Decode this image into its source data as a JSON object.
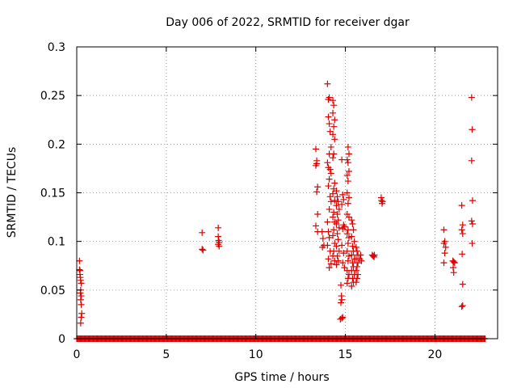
{
  "chart_data": {
    "type": "scatter",
    "title": "Day 006 of 2022, SRMTID for receiver dgar",
    "xlabel": "GPS time / hours",
    "ylabel": "SRMTID / TECUs",
    "xlim": [
      0,
      23.5
    ],
    "ylim": [
      0,
      0.3
    ],
    "grid": true,
    "marker": "+",
    "marker_color": "#dd0000",
    "x_ticks": [
      {
        "value": 0,
        "label": "0"
      },
      {
        "value": 5,
        "label": "5"
      },
      {
        "value": 10,
        "label": "10"
      },
      {
        "value": 15,
        "label": "15"
      },
      {
        "value": 20,
        "label": "20"
      }
    ],
    "y_ticks": [
      {
        "value": 0,
        "label": "0"
      },
      {
        "value": 0.05,
        "label": "0.05"
      },
      {
        "value": 0.1,
        "label": "0.1"
      },
      {
        "value": 0.15,
        "label": "0.15"
      },
      {
        "value": 0.2,
        "label": "0.2"
      },
      {
        "value": 0.25,
        "label": "0.25"
      },
      {
        "value": 0.3,
        "label": "0.3"
      }
    ],
    "series": [
      {
        "name": "SRMTID",
        "zero_baseline": {
          "x_start": 0,
          "x_end": 22.8,
          "step": 0.05,
          "y": 0
        },
        "points": [
          [
            0.15,
            0.08
          ],
          [
            0.15,
            0.071
          ],
          [
            0.18,
            0.07
          ],
          [
            0.18,
            0.066
          ],
          [
            0.2,
            0.063
          ],
          [
            0.22,
            0.06
          ],
          [
            0.25,
            0.057
          ],
          [
            0.22,
            0.05
          ],
          [
            0.2,
            0.047
          ],
          [
            0.25,
            0.044
          ],
          [
            0.22,
            0.04
          ],
          [
            0.25,
            0.035
          ],
          [
            0.28,
            0.026
          ],
          [
            0.25,
            0.022
          ],
          [
            0.22,
            0.016
          ],
          [
            7.0,
            0.109
          ],
          [
            7.0,
            0.092
          ],
          [
            7.05,
            0.091
          ],
          [
            7.9,
            0.114
          ],
          [
            7.9,
            0.105
          ],
          [
            7.92,
            0.101
          ],
          [
            7.95,
            0.099
          ],
          [
            7.9,
            0.097
          ],
          [
            7.95,
            0.095
          ],
          [
            13.35,
            0.195
          ],
          [
            13.4,
            0.183
          ],
          [
            13.4,
            0.18
          ],
          [
            13.35,
            0.178
          ],
          [
            13.45,
            0.156
          ],
          [
            13.4,
            0.151
          ],
          [
            13.45,
            0.128
          ],
          [
            13.35,
            0.116
          ],
          [
            13.45,
            0.11
          ],
          [
            13.7,
            0.11
          ],
          [
            13.75,
            0.103
          ],
          [
            13.8,
            0.096
          ],
          [
            13.72,
            0.094
          ],
          [
            14.0,
            0.262
          ],
          [
            14.05,
            0.246
          ],
          [
            14.1,
            0.248
          ],
          [
            14.05,
            0.228
          ],
          [
            14.1,
            0.221
          ],
          [
            14.15,
            0.213
          ],
          [
            14.2,
            0.197
          ],
          [
            14.1,
            0.19
          ],
          [
            14.0,
            0.181
          ],
          [
            14.05,
            0.176
          ],
          [
            14.15,
            0.174
          ],
          [
            14.2,
            0.17
          ],
          [
            14.1,
            0.164
          ],
          [
            14.05,
            0.157
          ],
          [
            14.15,
            0.146
          ],
          [
            14.2,
            0.141
          ],
          [
            14.1,
            0.133
          ],
          [
            14.0,
            0.12
          ],
          [
            14.05,
            0.11
          ],
          [
            14.1,
            0.104
          ],
          [
            14.0,
            0.096
          ],
          [
            14.15,
            0.09
          ],
          [
            14.05,
            0.082
          ],
          [
            14.2,
            0.077
          ],
          [
            14.1,
            0.073
          ],
          [
            14.3,
            0.245
          ],
          [
            14.35,
            0.24
          ],
          [
            14.3,
            0.232
          ],
          [
            14.4,
            0.225
          ],
          [
            14.35,
            0.218
          ],
          [
            14.3,
            0.21
          ],
          [
            14.4,
            0.205
          ],
          [
            14.35,
            0.19
          ],
          [
            14.3,
            0.186
          ],
          [
            14.4,
            0.16
          ],
          [
            14.35,
            0.154
          ],
          [
            14.3,
            0.149
          ],
          [
            14.4,
            0.142
          ],
          [
            14.35,
            0.13
          ],
          [
            14.3,
            0.125
          ],
          [
            14.4,
            0.12
          ],
          [
            14.35,
            0.112
          ],
          [
            14.3,
            0.106
          ],
          [
            14.4,
            0.098
          ],
          [
            14.35,
            0.09
          ],
          [
            14.3,
            0.085
          ],
          [
            14.4,
            0.08
          ],
          [
            14.5,
            0.152
          ],
          [
            14.55,
            0.146
          ],
          [
            14.6,
            0.141
          ],
          [
            14.5,
            0.137
          ],
          [
            14.65,
            0.133
          ],
          [
            14.55,
            0.128
          ],
          [
            14.6,
            0.122
          ],
          [
            14.5,
            0.118
          ],
          [
            14.65,
            0.114
          ],
          [
            14.55,
            0.108
          ],
          [
            14.6,
            0.102
          ],
          [
            14.5,
            0.095
          ],
          [
            14.65,
            0.09
          ],
          [
            14.55,
            0.085
          ],
          [
            14.6,
            0.08
          ],
          [
            14.5,
            0.076
          ],
          [
            14.75,
            0.055
          ],
          [
            14.78,
            0.044
          ],
          [
            14.8,
            0.04
          ],
          [
            14.75,
            0.037
          ],
          [
            14.8,
            0.021
          ],
          [
            14.85,
            0.022
          ],
          [
            14.72,
            0.02
          ],
          [
            14.8,
            0.184
          ],
          [
            14.85,
            0.148
          ],
          [
            14.9,
            0.143
          ],
          [
            14.8,
            0.138
          ],
          [
            14.9,
            0.117
          ],
          [
            14.85,
            0.113
          ],
          [
            14.95,
            0.115
          ],
          [
            14.8,
            0.096
          ],
          [
            14.9,
            0.088
          ],
          [
            14.85,
            0.078
          ],
          [
            14.95,
            0.073
          ],
          [
            15.1,
            0.184
          ],
          [
            15.15,
            0.197
          ],
          [
            15.2,
            0.19
          ],
          [
            15.15,
            0.181
          ],
          [
            15.2,
            0.172
          ],
          [
            15.1,
            0.168
          ],
          [
            15.15,
            0.162
          ],
          [
            15.1,
            0.15
          ],
          [
            15.2,
            0.145
          ],
          [
            15.15,
            0.139
          ],
          [
            15.1,
            0.128
          ],
          [
            15.2,
            0.125
          ],
          [
            15.15,
            0.112
          ],
          [
            15.1,
            0.108
          ],
          [
            15.2,
            0.104
          ],
          [
            15.15,
            0.098
          ],
          [
            15.1,
            0.09
          ],
          [
            15.2,
            0.085
          ],
          [
            15.15,
            0.08
          ],
          [
            15.1,
            0.07
          ],
          [
            15.2,
            0.066
          ],
          [
            15.15,
            0.062
          ],
          [
            15.1,
            0.057
          ],
          [
            15.35,
            0.122
          ],
          [
            15.4,
            0.118
          ],
          [
            15.45,
            0.112
          ],
          [
            15.35,
            0.105
          ],
          [
            15.5,
            0.1
          ],
          [
            15.4,
            0.095
          ],
          [
            15.45,
            0.09
          ],
          [
            15.35,
            0.086
          ],
          [
            15.5,
            0.082
          ],
          [
            15.4,
            0.078
          ],
          [
            15.45,
            0.074
          ],
          [
            15.35,
            0.07
          ],
          [
            15.5,
            0.066
          ],
          [
            15.4,
            0.062
          ],
          [
            15.45,
            0.058
          ],
          [
            15.35,
            0.054
          ],
          [
            15.6,
            0.094
          ],
          [
            15.65,
            0.09
          ],
          [
            15.7,
            0.086
          ],
          [
            15.6,
            0.082
          ],
          [
            15.7,
            0.078
          ],
          [
            15.65,
            0.074
          ],
          [
            15.6,
            0.07
          ],
          [
            15.7,
            0.066
          ],
          [
            15.65,
            0.062
          ],
          [
            15.6,
            0.058
          ],
          [
            15.8,
            0.082
          ],
          [
            15.85,
            0.086
          ],
          [
            15.9,
            0.08
          ],
          [
            16.5,
            0.086
          ],
          [
            16.55,
            0.085
          ],
          [
            16.6,
            0.084
          ],
          [
            16.62,
            0.086
          ],
          [
            17.0,
            0.145
          ],
          [
            17.02,
            0.142
          ],
          [
            17.05,
            0.139
          ],
          [
            17.08,
            0.141
          ],
          [
            20.5,
            0.112
          ],
          [
            20.55,
            0.1
          ],
          [
            20.5,
            0.098
          ],
          [
            20.6,
            0.094
          ],
          [
            20.55,
            0.088
          ],
          [
            20.5,
            0.078
          ],
          [
            21.0,
            0.08
          ],
          [
            21.05,
            0.079
          ],
          [
            21.1,
            0.078
          ],
          [
            21.02,
            0.073
          ],
          [
            21.05,
            0.068
          ],
          [
            21.5,
            0.137
          ],
          [
            21.55,
            0.117
          ],
          [
            21.5,
            0.112
          ],
          [
            21.55,
            0.108
          ],
          [
            21.52,
            0.087
          ],
          [
            21.55,
            0.056
          ],
          [
            21.5,
            0.033
          ],
          [
            21.55,
            0.034
          ],
          [
            22.05,
            0.248
          ],
          [
            22.08,
            0.215
          ],
          [
            22.05,
            0.183
          ],
          [
            22.1,
            0.142
          ],
          [
            22.05,
            0.121
          ],
          [
            22.1,
            0.118
          ],
          [
            22.08,
            0.098
          ]
        ]
      }
    ]
  }
}
